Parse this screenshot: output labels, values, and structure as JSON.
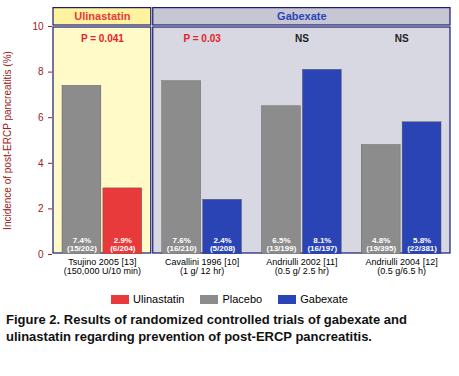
{
  "chart_data": {
    "type": "bar",
    "y_label": "Incidence of post-ERCP pancreatitis (%)",
    "caption": "Figure 2. Results of randomized controlled trials of gabexate and ulinastatin regarding prevention of post-ERCP pancreatitis.",
    "categories": [
      "Tsujino 2005 [13]\n(150,000 U/10 min)",
      "Cavallini 1996 [10]\n(1 g/ 12 hr)",
      "Andriulli 2002 [11]\n(0.5 g/ 2.5 hr)",
      "Andriulli 2004 [12]\n(0.5 g/6.5 h)"
    ],
    "series": [
      {
        "name": "Ulinastatin",
        "color": "#e83a3a",
        "values": [
          2.9,
          null,
          null,
          null
        ],
        "value_labels": [
          "2.9%\n(6/204)",
          null,
          null,
          null
        ]
      },
      {
        "name": "Placebo",
        "color": "#8c8c8c",
        "values": [
          7.4,
          7.6,
          6.5,
          4.8
        ],
        "value_labels": [
          "7.4%\n(15/202)",
          "7.6%\n(16/210)",
          "6.5%\n(13/199)",
          "4.8%\n(19/395)"
        ]
      },
      {
        "name": "Gabexate",
        "color": "#2b44b5",
        "values": [
          null,
          2.4,
          8.1,
          5.8
        ],
        "value_labels": [
          null,
          "2.4%\n(5/208)",
          "8.1%\n(16/197)",
          "5.8%\n(22/381)"
        ]
      }
    ],
    "annotations": [
      {
        "text": "P = 0.041",
        "color": "#e8202a"
      },
      {
        "text": "P = 0.03",
        "color": "#e8202a"
      },
      {
        "text": "NS",
        "color": "#222222"
      },
      {
        "text": "NS",
        "color": "#222222"
      }
    ],
    "ylim": [
      0,
      10
    ],
    "yticks": [
      0,
      2,
      4,
      6,
      8,
      10
    ],
    "data_labels": true,
    "legend": "bottom",
    "grid": false
  }
}
